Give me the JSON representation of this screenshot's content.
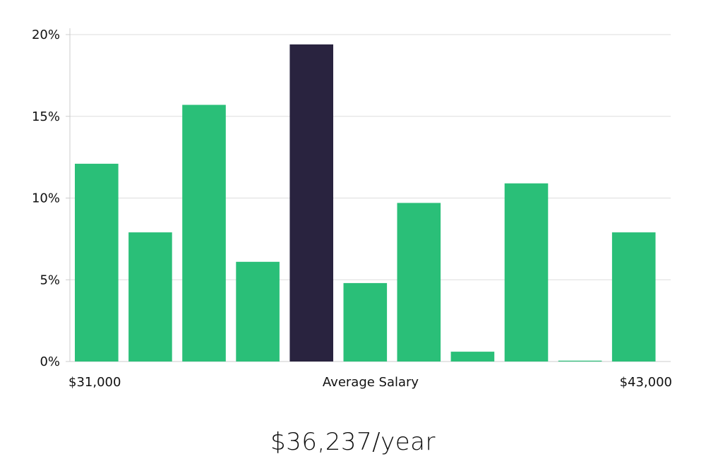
{
  "colors": {
    "bar": "#2abf78",
    "highlight": "#29233f",
    "grid": "#dddddd",
    "axis": "#cccccc",
    "text": "#111111"
  },
  "chart_data": {
    "type": "bar",
    "title": "",
    "xlabel": "Average Salary",
    "ylabel": "",
    "x_range_labels": [
      "$31,000",
      "$43,000"
    ],
    "categories": [
      "1",
      "2",
      "3",
      "4",
      "5",
      "6",
      "7",
      "8",
      "9",
      "10",
      "11"
    ],
    "values": [
      12.1,
      7.9,
      15.7,
      6.1,
      19.4,
      4.8,
      9.7,
      0.6,
      10.9,
      0.05,
      7.9
    ],
    "highlight_index": 4,
    "ylim": [
      0,
      20
    ],
    "yticks": [
      0,
      5,
      10,
      15,
      20
    ],
    "ytick_labels": [
      "0%",
      "5%",
      "10%",
      "15%",
      "20%"
    ],
    "grid": true,
    "legend": "none"
  },
  "summary": {
    "salary_text": "$36,237/year"
  }
}
